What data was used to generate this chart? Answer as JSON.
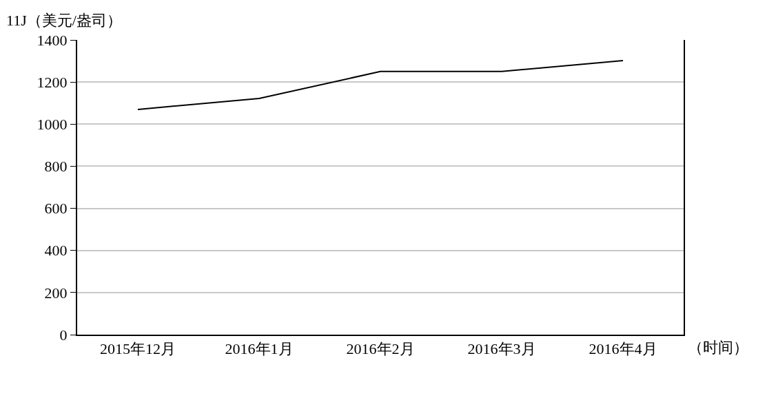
{
  "chart_data": {
    "type": "line",
    "ylabel": "11J（美元/盎司）",
    "xlabel": "（时间）",
    "categories": [
      "2015年12月",
      "2016年1月",
      "2016年2月",
      "2016年3月",
      "2016年4月"
    ],
    "series": [
      {
        "color": "#000000",
        "values": [
          1070,
          1122,
          1250,
          1250,
          1302
        ]
      }
    ],
    "ylim": [
      0,
      1400
    ],
    "yticks": [
      0,
      200,
      400,
      600,
      800,
      1000,
      1200,
      1400
    ],
    "grid": "y",
    "marker": "none",
    "line_style": "solid"
  }
}
